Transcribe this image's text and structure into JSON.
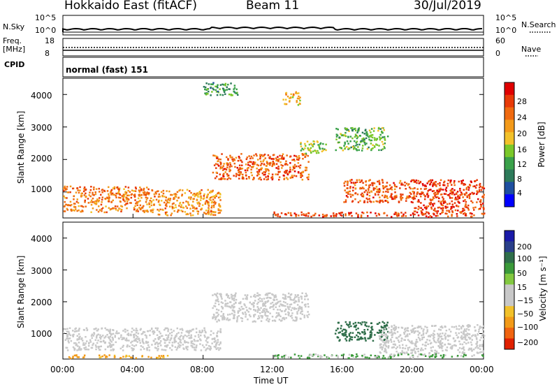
{
  "header": {
    "station": "Hokkaido East (fitACF)",
    "beam": "Beam 11",
    "date": "30/Jul/2019"
  },
  "top_panels": {
    "nsky_label": "N.Sky",
    "nsky_ticks": [
      "10^5",
      "10^0"
    ],
    "nsearch_label": "N.Search",
    "nsearch_ticks": [
      "10^5",
      "10^0"
    ],
    "freq_label_1": "Freq.",
    "freq_label_2": "[MHz]",
    "freq_ticks": [
      "18",
      "8"
    ],
    "nave_label": "Nave",
    "nave_ticks": [
      "60",
      "0"
    ],
    "cpid_label": "CPID",
    "cpid_value": "normal (fast) 151"
  },
  "colors": {
    "power_scale": [
      "#0000ff",
      "#1e4fa0",
      "#2d7a5a",
      "#3aa14a",
      "#7ac82a",
      "#f2c12a",
      "#f39a1a",
      "#f06a10",
      "#e83a08",
      "#e00000"
    ],
    "velocity_scale": [
      "#1a1aa8",
      "#2a3f8a",
      "#2f6e4a",
      "#3b9a3a",
      "#82c840",
      "#c8c8c8",
      "#c8c8c8",
      "#f2c12a",
      "#f29a18",
      "#f06410",
      "#e02000"
    ]
  },
  "chart_data": [
    {
      "type": "heatmap",
      "name": "power",
      "ylabel": "Slant Range [km]",
      "yticks": [
        "4000",
        "3000",
        "2000",
        "1000"
      ],
      "ylim": [
        200,
        4500
      ],
      "xlim": [
        "00:00",
        "24:00"
      ],
      "colorbar_label": "Power [dB]",
      "colorbar_ticks": [
        "28",
        "24",
        "20",
        "16",
        "12",
        "8",
        "4"
      ],
      "regions": [
        {
          "t0": 0.0,
          "t1": 5.0,
          "r0": 400,
          "r1": 1200,
          "level": 24
        },
        {
          "t0": 5.0,
          "t1": 9.0,
          "r0": 300,
          "r1": 1100,
          "level": 22
        },
        {
          "t0": 8.5,
          "t1": 14.0,
          "r0": 1400,
          "r1": 2200,
          "level": 26
        },
        {
          "t0": 13.5,
          "t1": 15.0,
          "r0": 2200,
          "r1": 2600,
          "level": 14
        },
        {
          "t0": 8.0,
          "t1": 10.0,
          "r0": 4000,
          "r1": 4400,
          "level": 10
        },
        {
          "t0": 12.5,
          "t1": 13.5,
          "r0": 3700,
          "r1": 4100,
          "level": 20
        },
        {
          "t0": 15.5,
          "t1": 18.5,
          "r0": 2300,
          "r1": 3000,
          "level": 12
        },
        {
          "t0": 16.0,
          "t1": 20.0,
          "r0": 700,
          "r1": 1400,
          "level": 26
        },
        {
          "t0": 20.0,
          "t1": 24.0,
          "r0": 400,
          "r1": 1400,
          "level": 28
        },
        {
          "t0": 12.0,
          "t1": 24.0,
          "r0": 250,
          "r1": 400,
          "level": 28
        }
      ]
    },
    {
      "type": "heatmap",
      "name": "velocity",
      "ylabel": "Slant Range [km]",
      "yticks": [
        "4000",
        "3000",
        "2000",
        "1000"
      ],
      "ylim": [
        200,
        4500
      ],
      "xlim": [
        "00:00",
        "24:00"
      ],
      "xticks": [
        "00:00",
        "04:00",
        "08:00",
        "12:00",
        "16:00",
        "20:00",
        "00:00"
      ],
      "xlabel": "Time UT",
      "colorbar_label": "Velocity [m s⁻¹]",
      "colorbar_ticks": [
        "200",
        "100",
        "50",
        "15",
        "−15",
        "−50",
        "−100",
        "−200"
      ],
      "regions": [
        {
          "t0": 0.0,
          "t1": 9.0,
          "r0": 500,
          "r1": 1200,
          "velocity": 0
        },
        {
          "t0": 8.5,
          "t1": 14.0,
          "r0": 1400,
          "r1": 2300,
          "velocity": 0
        },
        {
          "t0": 15.5,
          "t1": 18.5,
          "r0": 800,
          "r1": 1400,
          "velocity": 60
        },
        {
          "t0": 18.0,
          "t1": 24.0,
          "r0": 400,
          "r1": 1300,
          "velocity": 0
        },
        {
          "t0": 0.0,
          "t1": 6.0,
          "r0": 250,
          "r1": 350,
          "velocity": -40
        },
        {
          "t0": 12.0,
          "t1": 24.0,
          "r0": 250,
          "r1": 380,
          "velocity": 20
        }
      ]
    }
  ]
}
